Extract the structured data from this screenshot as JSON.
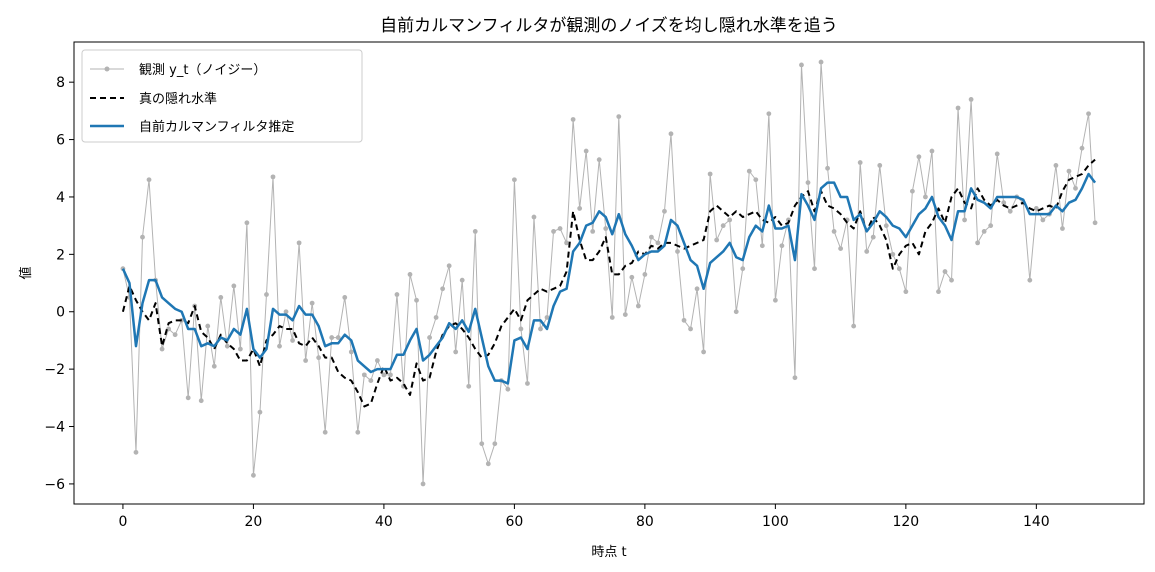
{
  "chart_data": {
    "type": "line",
    "title": "自前カルマンフィルタが観測のノイズを均し隠れ水準を追う",
    "xlabel": "時点 t",
    "ylabel": "値",
    "xlim": [
      -7.5,
      156.5
    ],
    "ylim": [
      -6.7,
      9.4
    ],
    "xticks": [
      0,
      20,
      40,
      60,
      80,
      100,
      120,
      140
    ],
    "yticks": [
      -6,
      -4,
      -2,
      0,
      2,
      4,
      6,
      8
    ],
    "grid": false,
    "legend_position": "top-left",
    "x": [
      0,
      1,
      2,
      3,
      4,
      5,
      6,
      7,
      8,
      9,
      10,
      11,
      12,
      13,
      14,
      15,
      16,
      17,
      18,
      19,
      20,
      21,
      22,
      23,
      24,
      25,
      26,
      27,
      28,
      29,
      30,
      31,
      32,
      33,
      34,
      35,
      36,
      37,
      38,
      39,
      40,
      41,
      42,
      43,
      44,
      45,
      46,
      47,
      48,
      49,
      50,
      51,
      52,
      53,
      54,
      55,
      56,
      57,
      58,
      59,
      60,
      61,
      62,
      63,
      64,
      65,
      66,
      67,
      68,
      69,
      70,
      71,
      72,
      73,
      74,
      75,
      76,
      77,
      78,
      79,
      80,
      81,
      82,
      83,
      84,
      85,
      86,
      87,
      88,
      89,
      90,
      91,
      92,
      93,
      94,
      95,
      96,
      97,
      98,
      99,
      100,
      101,
      102,
      103,
      104,
      105,
      106,
      107,
      108,
      109,
      110,
      111,
      112,
      113,
      114,
      115,
      116,
      117,
      118,
      119,
      120,
      121,
      122,
      123,
      124,
      125,
      126,
      127,
      128,
      129,
      130,
      131,
      132,
      133,
      134,
      135,
      136,
      137,
      138,
      139,
      140,
      141,
      142,
      143,
      144,
      145,
      146,
      147,
      148,
      149
    ],
    "series": [
      {
        "name": "観測 y_t（ノイジー）",
        "color": "#b3b3b3",
        "values": [
          1.5,
          0.5,
          -4.9,
          2.6,
          4.6,
          1.1,
          -1.3,
          -0.6,
          -0.8,
          -0.3,
          -3.0,
          0.2,
          -3.1,
          -0.5,
          -1.9,
          0.5,
          -1.2,
          0.9,
          -1.3,
          3.1,
          -5.7,
          -3.5,
          0.6,
          4.7,
          -1.2,
          0.0,
          -1.0,
          2.4,
          -1.7,
          0.3,
          -1.6,
          -4.2,
          -0.9,
          -0.9,
          0.5,
          -1.4,
          -4.2,
          -2.2,
          -2.4,
          -1.7,
          -2.2,
          -2.2,
          0.6,
          -2.6,
          1.3,
          0.4,
          -6.0,
          -0.9,
          -0.2,
          0.8,
          1.6,
          -1.4,
          1.1,
          -2.6,
          2.8,
          -4.6,
          -5.3,
          -4.6,
          -2.4,
          -2.7,
          4.6,
          -0.6,
          -2.5,
          3.3,
          -0.6,
          -0.2,
          2.8,
          2.9,
          2.4,
          6.7,
          3.6,
          5.6,
          2.8,
          5.3,
          2.9,
          -0.2,
          6.8,
          -0.1,
          1.2,
          0.2,
          1.3,
          2.6,
          2.4,
          3.5,
          6.2,
          2.1,
          -0.3,
          -0.6,
          0.8,
          -1.4,
          4.8,
          2.5,
          3.0,
          3.2,
          0.0,
          1.5,
          4.9,
          4.6,
          2.3,
          6.9,
          0.4,
          2.3,
          3.2,
          -2.3,
          8.6,
          4.5,
          1.5,
          8.7,
          5.0,
          2.8,
          2.2,
          3.2,
          -0.5,
          5.2,
          2.1,
          2.6,
          5.1,
          3.0,
          2.0,
          1.5,
          0.7,
          4.2,
          5.4,
          4.0,
          5.6,
          0.7,
          1.4,
          1.1,
          7.1,
          3.2,
          7.4,
          2.4,
          2.8,
          3.0,
          5.5,
          3.8,
          3.5,
          4.0,
          3.8,
          1.1,
          3.6,
          3.2,
          3.4,
          5.1,
          2.9,
          4.9,
          4.3,
          5.7,
          6.9,
          3.1
        ]
      },
      {
        "name": "真の隠れ水準",
        "color": "#000000",
        "values": [
          0.0,
          0.9,
          0.4,
          0.0,
          -0.3,
          0.3,
          -1.2,
          -0.4,
          -0.3,
          -0.3,
          -0.4,
          0.2,
          -0.7,
          -0.9,
          -1.3,
          -0.8,
          -1.1,
          -1.3,
          -1.7,
          -1.7,
          -1.3,
          -1.9,
          -1.0,
          -0.8,
          -0.5,
          -0.6,
          -0.6,
          -1.1,
          -1.2,
          -0.9,
          -1.2,
          -1.6,
          -1.6,
          -2.1,
          -2.3,
          -2.4,
          -2.8,
          -3.3,
          -3.2,
          -2.5,
          -1.9,
          -2.4,
          -2.3,
          -2.5,
          -2.9,
          -1.8,
          -2.4,
          -2.3,
          -1.4,
          -0.8,
          -0.5,
          -0.4,
          -0.6,
          -0.9,
          -1.3,
          -1.6,
          -1.5,
          -1.1,
          -0.5,
          -0.2,
          0.1,
          -0.3,
          0.4,
          0.6,
          0.8,
          0.7,
          0.8,
          0.9,
          1.4,
          3.5,
          2.5,
          1.8,
          1.8,
          2.1,
          2.6,
          1.3,
          1.3,
          1.6,
          1.7,
          2.1,
          2.0,
          2.3,
          2.2,
          2.4,
          2.4,
          2.3,
          2.2,
          2.3,
          2.4,
          2.5,
          3.5,
          3.7,
          3.5,
          3.3,
          3.5,
          3.3,
          3.4,
          3.5,
          3.2,
          3.1,
          3.3,
          3.0,
          3.1,
          3.7,
          4.0,
          4.2,
          3.5,
          4.2,
          3.7,
          3.6,
          3.4,
          3.1,
          2.9,
          3.5,
          2.8,
          3.3,
          3.0,
          2.5,
          1.5,
          2.0,
          2.3,
          2.4,
          2.0,
          2.8,
          3.1,
          3.6,
          3.1,
          4.0,
          4.3,
          3.8,
          3.6,
          4.3,
          3.9,
          3.7,
          3.9,
          3.7,
          3.6,
          3.7,
          3.8,
          3.6,
          3.5,
          3.6,
          3.7,
          3.6,
          4.2,
          4.6,
          4.7,
          4.8,
          5.1,
          5.3
        ]
      },
      {
        "name": "自前カルマンフィルタ推定",
        "color": "#1f77b4",
        "values": [
          1.5,
          1.0,
          -1.2,
          0.3,
          1.1,
          1.1,
          0.5,
          0.3,
          0.1,
          0.0,
          -0.6,
          -0.6,
          -1.2,
          -1.1,
          -1.2,
          -0.9,
          -1.0,
          -0.6,
          -0.8,
          0.1,
          -1.3,
          -1.6,
          -1.3,
          0.1,
          -0.1,
          -0.1,
          -0.3,
          0.2,
          -0.1,
          -0.1,
          -0.5,
          -1.2,
          -1.1,
          -1.1,
          -0.8,
          -1.0,
          -1.7,
          -1.9,
          -2.1,
          -2.0,
          -2.0,
          -2.0,
          -1.5,
          -1.5,
          -1.0,
          -0.6,
          -1.7,
          -1.5,
          -1.2,
          -0.9,
          -0.4,
          -0.6,
          -0.3,
          -0.7,
          0.1,
          -0.9,
          -1.9,
          -2.4,
          -2.4,
          -2.5,
          -1.0,
          -0.9,
          -1.3,
          -0.3,
          -0.3,
          -0.6,
          0.2,
          0.7,
          0.8,
          2.1,
          2.4,
          3.0,
          3.1,
          3.5,
          3.3,
          2.7,
          3.4,
          2.7,
          2.3,
          1.8,
          2.0,
          2.1,
          2.1,
          2.3,
          3.2,
          3.0,
          2.4,
          1.8,
          1.6,
          0.8,
          1.7,
          1.9,
          2.1,
          2.4,
          1.9,
          1.8,
          2.6,
          3.0,
          2.8,
          3.7,
          2.9,
          2.9,
          3.0,
          1.8,
          4.1,
          3.7,
          3.2,
          4.3,
          4.5,
          4.5,
          4.0,
          4.0,
          3.2,
          3.4,
          2.8,
          3.1,
          3.5,
          3.3,
          3.0,
          2.9,
          2.6,
          3.0,
          3.4,
          3.6,
          4.0,
          3.3,
          3.0,
          2.5,
          3.5,
          3.5,
          4.3,
          3.9,
          3.8,
          3.6,
          4.0,
          4.0,
          4.0,
          4.0,
          3.9,
          3.4,
          3.4,
          3.4,
          3.4,
          3.7,
          3.5,
          3.8,
          3.9,
          4.3,
          4.8,
          4.5
        ]
      }
    ]
  }
}
